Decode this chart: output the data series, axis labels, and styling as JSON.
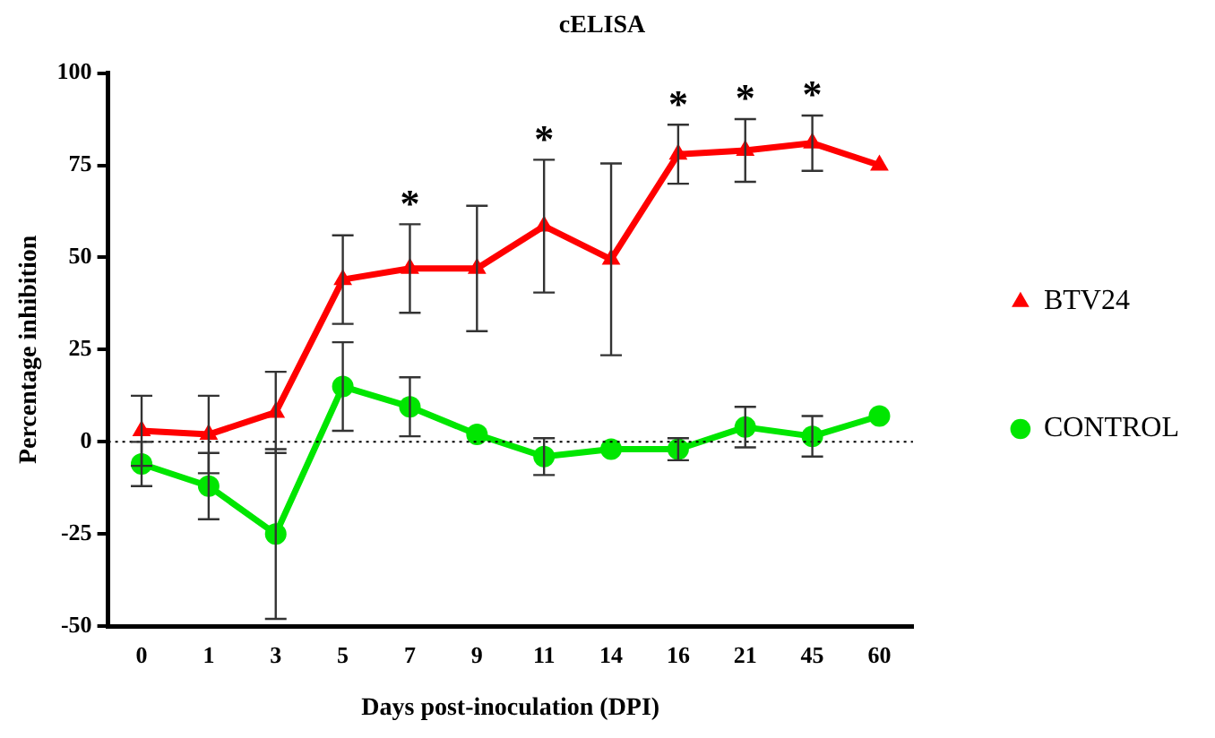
{
  "chart_data": {
    "type": "line",
    "title": "cELISA",
    "xlabel": "Days post-inoculation (DPI)",
    "ylabel": "Percentage inhibition",
    "categories": [
      "0",
      "1",
      "3",
      "5",
      "7",
      "9",
      "11",
      "14",
      "16",
      "21",
      "45",
      "60"
    ],
    "series": [
      {
        "name": "BTV24",
        "color": "#ff0000",
        "marker": "triangle",
        "values": [
          3,
          2,
          8,
          44,
          47,
          47,
          58.5,
          49.5,
          78,
          79,
          81,
          75
        ],
        "errors": [
          9.5,
          10.5,
          11,
          12,
          12,
          17,
          18,
          26,
          8,
          8.5,
          7.5,
          null
        ]
      },
      {
        "name": "CONTROL",
        "color": "#00e600",
        "marker": "circle",
        "values": [
          -6,
          -12,
          -25,
          15,
          9.5,
          2,
          -4,
          -2,
          -2,
          4,
          1.5,
          7
        ],
        "errors": [
          6,
          9,
          23,
          12,
          8,
          null,
          5,
          null,
          3,
          5.5,
          5.5,
          null
        ]
      }
    ],
    "ylim": [
      -50,
      100
    ],
    "yticks": [
      -50,
      -25,
      0,
      25,
      50,
      75,
      100
    ],
    "grid": false,
    "legend": "right",
    "ref_lines": [
      {
        "axis": "y",
        "value": 0,
        "line_style": "dotted"
      }
    ],
    "annotations": [
      {
        "text": "*",
        "x": "7",
        "y": 47
      },
      {
        "text": "*",
        "x": "11",
        "y": 58.5
      },
      {
        "text": "*",
        "x": "16",
        "y": 78
      },
      {
        "text": "*",
        "x": "21",
        "y": 79
      },
      {
        "text": "*",
        "x": "45",
        "y": 81
      }
    ]
  }
}
